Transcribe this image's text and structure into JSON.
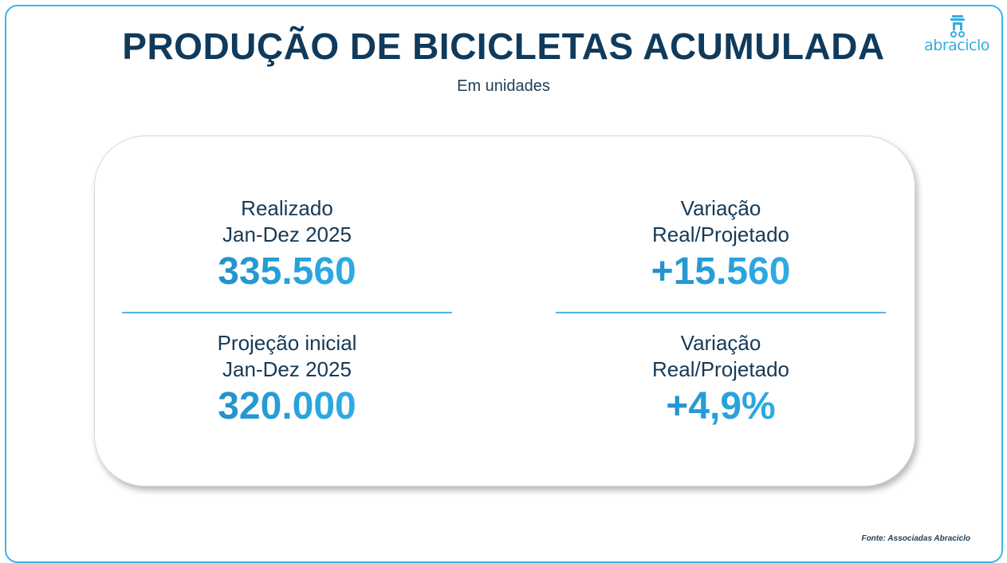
{
  "header": {
    "title": "PRODUÇÃO DE BICICLETAS ACUMULADA",
    "subtitle": "Em unidades"
  },
  "logo": {
    "text": "abraciclo",
    "icon": "abraciclo-logo-icon"
  },
  "metrics": {
    "realizado": {
      "label1": "Realizado",
      "label2": "Jan-Dez 2025",
      "value": "335.560"
    },
    "projecao": {
      "label1": "Projeção inicial",
      "label2": "Jan-Dez 2025",
      "value": "320.000"
    },
    "variacao_abs": {
      "label1": "Variação",
      "label2": "Real/Projetado",
      "value": "+15.560"
    },
    "variacao_pct": {
      "label1": "Variação",
      "label2": "Real/Projetado",
      "value": "+4,9%"
    }
  },
  "footer": {
    "source": "Fonte: Associadas Abraciclo"
  },
  "colors": {
    "frame": "#3ab7e4",
    "title": "#0f3a5c",
    "accent": "#2aa7e0",
    "divider": "#4cb8e3"
  }
}
